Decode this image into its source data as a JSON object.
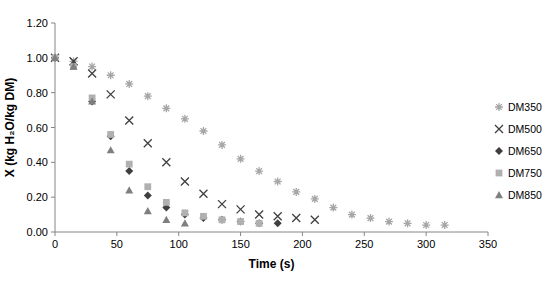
{
  "chart_data": {
    "type": "scatter",
    "x_label": "Time (s)",
    "y_label": "X (kg H₂O/kg DM)",
    "xlim": [
      0,
      350
    ],
    "xticks": [
      0,
      50,
      100,
      150,
      200,
      250,
      300,
      350
    ],
    "ylim": [
      0,
      1.2
    ],
    "yticks": [
      {
        "value": 0,
        "label": "0.00"
      },
      {
        "value": 0.2,
        "label": "0.20"
      },
      {
        "value": 0.4,
        "label": "0.40"
      },
      {
        "value": 0.6,
        "label": "0.60"
      },
      {
        "value": 0.8,
        "label": "0.80"
      },
      {
        "value": 1.0,
        "label": "1.00"
      },
      {
        "value": 1.2,
        "label": "1.20"
      }
    ],
    "grid": false,
    "legend": "right",
    "series": [
      {
        "name": "DM350",
        "color": "#a6a6a6",
        "marker": "asterisk",
        "x": [
          0,
          15,
          30,
          45,
          60,
          75,
          90,
          105,
          120,
          135,
          150,
          165,
          180,
          195,
          210,
          225,
          240,
          255,
          270,
          285,
          300,
          315
        ],
        "values": [
          1.0,
          0.98,
          0.95,
          0.9,
          0.85,
          0.78,
          0.71,
          0.65,
          0.58,
          0.5,
          0.42,
          0.35,
          0.29,
          0.23,
          0.19,
          0.14,
          0.1,
          0.08,
          0.06,
          0.05,
          0.04,
          0.04
        ]
      },
      {
        "name": "DM500",
        "color": "#404040",
        "marker": "x",
        "x": [
          0,
          15,
          30,
          45,
          60,
          75,
          90,
          105,
          120,
          135,
          150,
          165,
          180,
          195,
          210
        ],
        "values": [
          1.0,
          0.98,
          0.91,
          0.79,
          0.64,
          0.51,
          0.4,
          0.29,
          0.22,
          0.16,
          0.13,
          0.1,
          0.09,
          0.08,
          0.07
        ]
      },
      {
        "name": "DM650",
        "color": "#3f3f3f",
        "marker": "diamond",
        "x": [
          0,
          15,
          30,
          45,
          60,
          75,
          90,
          105,
          120,
          135,
          150,
          165,
          180
        ],
        "values": [
          1.0,
          0.96,
          0.75,
          0.55,
          0.35,
          0.21,
          0.14,
          0.1,
          0.08,
          0.07,
          0.06,
          0.05,
          0.05
        ]
      },
      {
        "name": "DM750",
        "color": "#b0b0b0",
        "marker": "square",
        "x": [
          0,
          15,
          30,
          45,
          60,
          75,
          90,
          105,
          120,
          135,
          150,
          165
        ],
        "values": [
          1.0,
          0.95,
          0.77,
          0.56,
          0.39,
          0.26,
          0.17,
          0.11,
          0.09,
          0.07,
          0.06,
          0.05
        ]
      },
      {
        "name": "DM850",
        "color": "#7f7f7f",
        "marker": "triangle",
        "x": [
          0,
          15,
          30,
          45,
          60,
          75,
          90,
          105
        ],
        "values": [
          1.0,
          0.95,
          0.75,
          0.47,
          0.24,
          0.12,
          0.07,
          0.05
        ]
      }
    ]
  }
}
